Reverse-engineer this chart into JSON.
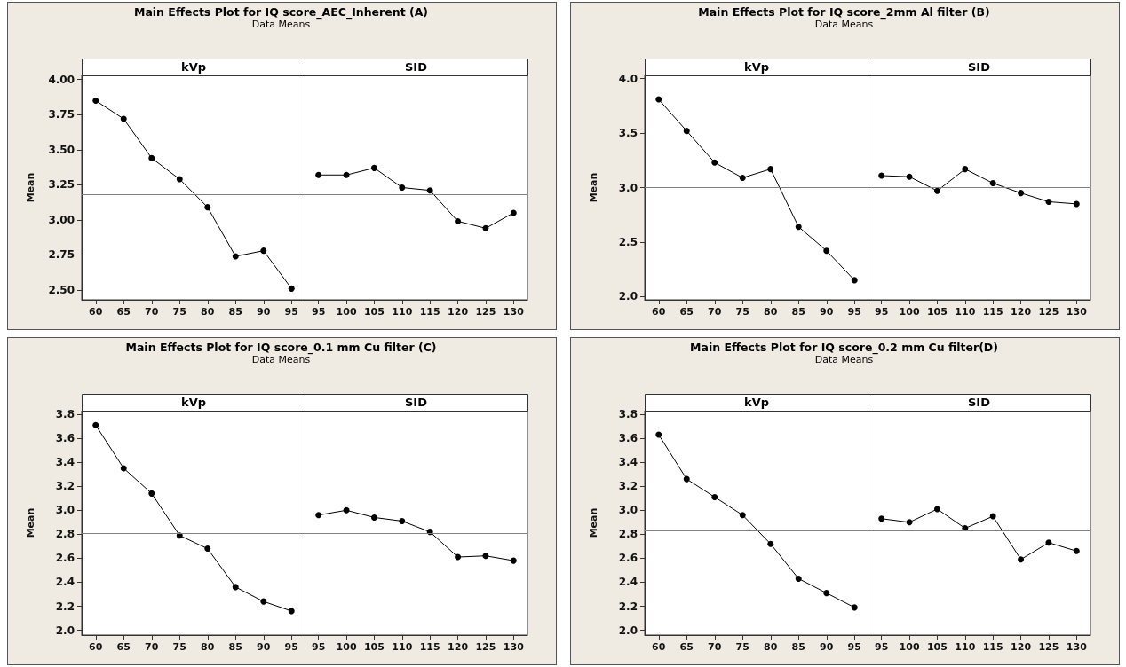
{
  "chart_data": [
    {
      "type": "line",
      "title": "Main Effects Plot for IQ score_AEC_Inherent (A)",
      "subtitle": "Data Means",
      "ylabel": "Mean",
      "annotations": [
        "kVp"
      ],
      "categories": [
        "60",
        "65",
        "70",
        "75",
        "80",
        "85",
        "90",
        "95"
      ],
      "values": [
        3.85,
        3.72,
        3.44,
        3.29,
        3.09,
        2.74,
        2.78,
        2.51
      ],
      "color": "#000000",
      "marker": "circle",
      "ylim": [
        2.43,
        4.03
      ],
      "yticks": [
        {
          "value": 2.5,
          "label": "2.50"
        },
        {
          "value": 2.75,
          "label": "2.75"
        },
        {
          "value": 3,
          "label": "3.00"
        },
        {
          "value": 3.25,
          "label": "3.25"
        },
        {
          "value": 3.5,
          "label": "3.50"
        },
        {
          "value": 3.75,
          "label": "3.75"
        },
        {
          "value": 4,
          "label": "4.00"
        }
      ],
      "ref_lines": [
        {
          "axis": "y",
          "value": 3.18,
          "color": "#808080"
        }
      ]
    },
    {
      "type": "line",
      "annotations": [
        "SID"
      ],
      "categories": [
        "95",
        "100",
        "105",
        "110",
        "115",
        "120",
        "125",
        "130"
      ],
      "values": [
        3.32,
        3.32,
        3.37,
        3.23,
        3.21,
        2.99,
        2.94,
        3.05
      ],
      "color": "#000000",
      "marker": "circle",
      "ylim": [
        2.43,
        4.03
      ],
      "tick_labels": "x",
      "ref_lines": [
        {
          "axis": "y",
          "value": 3.18,
          "color": "#808080"
        }
      ]
    },
    {
      "type": "line",
      "title": "Main Effects Plot for IQ score_2mm Al filter (B)",
      "subtitle": "Data Means",
      "ylabel": "Mean",
      "annotations": [
        "kVp"
      ],
      "categories": [
        "60",
        "65",
        "70",
        "75",
        "80",
        "85",
        "90",
        "95"
      ],
      "values": [
        3.81,
        3.52,
        3.23,
        3.09,
        3.17,
        2.64,
        2.42,
        2.15
      ],
      "color": "#000000",
      "marker": "circle",
      "ylim": [
        1.97,
        4.03
      ],
      "yticks": [
        {
          "value": 2,
          "label": "2.0"
        },
        2.5,
        {
          "value": 3,
          "label": "3.0"
        },
        3.5,
        {
          "value": 4,
          "label": "4.0"
        }
      ],
      "ref_lines": [
        {
          "axis": "y",
          "value": 3.0,
          "color": "#808080"
        }
      ]
    },
    {
      "type": "line",
      "annotations": [
        "SID"
      ],
      "categories": [
        "95",
        "100",
        "105",
        "110",
        "115",
        "120",
        "125",
        "130"
      ],
      "values": [
        3.11,
        3.1,
        2.97,
        3.17,
        3.04,
        2.95,
        2.87,
        2.85
      ],
      "color": "#000000",
      "marker": "circle",
      "ylim": [
        1.97,
        4.03
      ],
      "tick_labels": "x",
      "ref_lines": [
        {
          "axis": "y",
          "value": 3.0,
          "color": "#808080"
        }
      ]
    },
    {
      "type": "line",
      "title": "Main Effects Plot for IQ score_0.1 mm Cu filter (C)",
      "subtitle": "Data Means",
      "ylabel": "Mean",
      "annotations": [
        "kVp"
      ],
      "categories": [
        "60",
        "65",
        "70",
        "75",
        "80",
        "85",
        "90",
        "95"
      ],
      "values": [
        3.71,
        3.35,
        3.14,
        2.79,
        2.68,
        2.36,
        2.24,
        2.16
      ],
      "color": "#000000",
      "marker": "circle",
      "ylim": [
        1.96,
        3.83
      ],
      "yticks": [
        {
          "value": 2,
          "label": "2.0"
        },
        2.2,
        2.4,
        2.6,
        2.8,
        {
          "value": 3,
          "label": "3.0"
        },
        3.2,
        3.4,
        3.6,
        3.8
      ],
      "ref_lines": [
        {
          "axis": "y",
          "value": 2.81,
          "color": "#808080"
        }
      ]
    },
    {
      "type": "line",
      "annotations": [
        "SID"
      ],
      "categories": [
        "95",
        "100",
        "105",
        "110",
        "115",
        "120",
        "125",
        "130"
      ],
      "values": [
        2.96,
        3.0,
        2.94,
        2.91,
        2.82,
        2.61,
        2.62,
        2.58
      ],
      "color": "#000000",
      "marker": "circle",
      "ylim": [
        1.96,
        3.83
      ],
      "tick_labels": "x",
      "ref_lines": [
        {
          "axis": "y",
          "value": 2.81,
          "color": "#808080"
        }
      ]
    },
    {
      "type": "line",
      "title": "Main Effects Plot for IQ score_0.2 mm Cu filter(D)",
      "subtitle": "Data Means",
      "ylabel": "Mean",
      "annotations": [
        "kVp"
      ],
      "categories": [
        "60",
        "65",
        "70",
        "75",
        "80",
        "85",
        "90",
        "95"
      ],
      "values": [
        3.63,
        3.26,
        3.11,
        2.96,
        2.72,
        2.43,
        2.31,
        2.19
      ],
      "color": "#000000",
      "marker": "circle",
      "ylim": [
        1.96,
        3.83
      ],
      "yticks": [
        {
          "value": 2,
          "label": "2.0"
        },
        2.2,
        2.4,
        2.6,
        2.8,
        {
          "value": 3,
          "label": "3.0"
        },
        3.2,
        3.4,
        3.6,
        3.8
      ],
      "ref_lines": [
        {
          "axis": "y",
          "value": 2.83,
          "color": "#808080"
        }
      ]
    },
    {
      "type": "line",
      "annotations": [
        "SID"
      ],
      "categories": [
        "95",
        "100",
        "105",
        "110",
        "115",
        "120",
        "125",
        "130"
      ],
      "values": [
        2.93,
        2.9,
        3.01,
        2.85,
        2.95,
        2.59,
        2.73,
        2.66
      ],
      "color": "#000000",
      "marker": "circle",
      "ylim": [
        1.96,
        3.83
      ],
      "tick_labels": "x",
      "ref_lines": [
        {
          "axis": "y",
          "value": 2.83,
          "color": "#808080"
        }
      ]
    }
  ]
}
